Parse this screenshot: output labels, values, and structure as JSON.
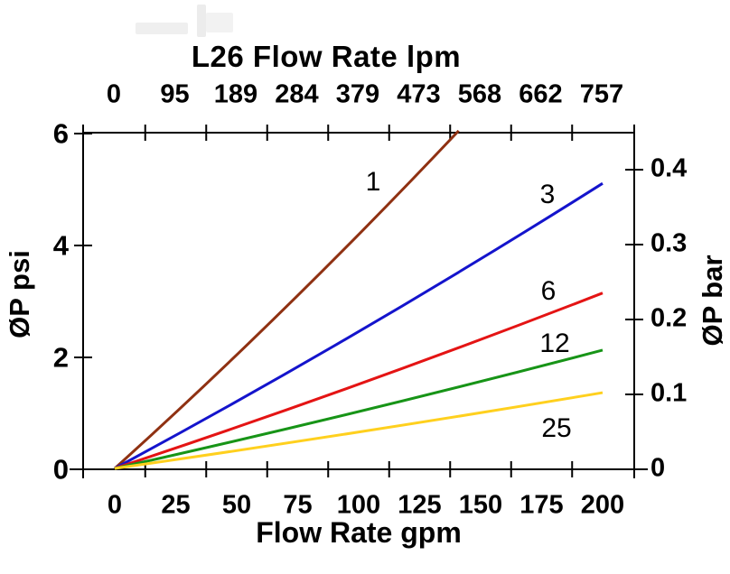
{
  "page": {
    "background": "#ffffff"
  },
  "chart_data": {
    "type": "line",
    "title": "L26 Flow Rate lpm",
    "grid": false,
    "legend": "inline-labels-at-line-ends",
    "top_axis": {
      "title": "L26 Flow Rate lpm",
      "unit": "lpm",
      "ticks": [
        {
          "label": "0",
          "gpm": 0
        },
        {
          "label": "95",
          "gpm": 25
        },
        {
          "label": "189",
          "gpm": 50
        },
        {
          "label": "284",
          "gpm": 75
        },
        {
          "label": "379",
          "gpm": 100
        },
        {
          "label": "473",
          "gpm": 125
        },
        {
          "label": "568",
          "gpm": 150
        },
        {
          "label": "662",
          "gpm": 175
        },
        {
          "label": "757",
          "gpm": 200
        }
      ]
    },
    "bottom_axis": {
      "title": "Flow Rate gpm",
      "unit": "gpm",
      "range": [
        0,
        200
      ],
      "minor_tick_step": 12.5,
      "ticks": [
        {
          "label": "0",
          "gpm": 0
        },
        {
          "label": "25",
          "gpm": 25
        },
        {
          "label": "50",
          "gpm": 50
        },
        {
          "label": "75",
          "gpm": 75
        },
        {
          "label": "100",
          "gpm": 100
        },
        {
          "label": "125",
          "gpm": 125
        },
        {
          "label": "150",
          "gpm": 150
        },
        {
          "label": "175",
          "gpm": 175
        },
        {
          "label": "200",
          "gpm": 200
        }
      ]
    },
    "left_axis": {
      "title": "ØP psi",
      "unit": "psi",
      "range": [
        0,
        6
      ],
      "ticks": [
        {
          "label": "6",
          "psi": 6
        },
        {
          "label": "4",
          "psi": 4
        },
        {
          "label": "2",
          "psi": 2
        },
        {
          "label": "0",
          "psi": 0
        }
      ]
    },
    "right_axis": {
      "title": "ØP bar",
      "unit": "bar",
      "range": [
        0,
        0.45
      ],
      "ticks": [
        {
          "label": "0.4",
          "bar": 0.4
        },
        {
          "label": "0.3",
          "bar": 0.3
        },
        {
          "label": "0.2",
          "bar": 0.2
        },
        {
          "label": "0.1",
          "bar": 0.1
        },
        {
          "label": "0",
          "bar": 0
        }
      ]
    },
    "series": [
      {
        "label": "1",
        "color": "#8F3112",
        "points": [
          {
            "gpm": 0,
            "psi": 0
          },
          {
            "gpm": 141,
            "psi": 6.05
          }
        ]
      },
      {
        "label": "3",
        "color": "#1414CC",
        "points": [
          {
            "gpm": 0,
            "psi": 0
          },
          {
            "gpm": 200,
            "psi": 5.11
          }
        ]
      },
      {
        "label": "6",
        "color": "#E41414",
        "points": [
          {
            "gpm": 0,
            "psi": 0
          },
          {
            "gpm": 200,
            "psi": 3.15
          }
        ]
      },
      {
        "label": "12",
        "color": "#179417",
        "points": [
          {
            "gpm": 0,
            "psi": 0
          },
          {
            "gpm": 200,
            "psi": 2.13
          }
        ]
      },
      {
        "label": "25",
        "color": "#FFD01E",
        "points": [
          {
            "gpm": 0,
            "psi": 0
          },
          {
            "gpm": 200,
            "psi": 1.37
          }
        ]
      }
    ]
  }
}
